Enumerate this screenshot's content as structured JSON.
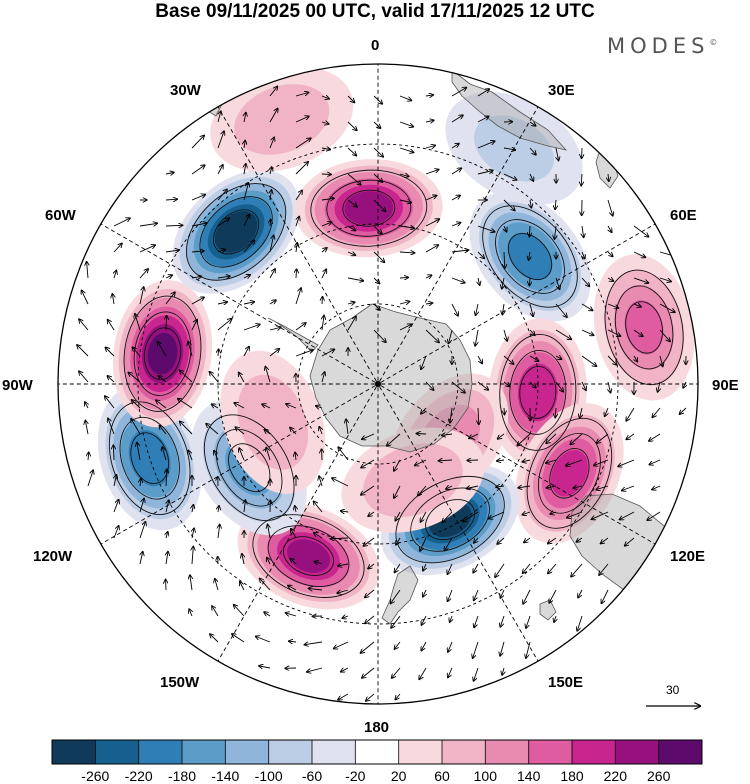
{
  "title": "Base 09/11/2025 00 UTC, valid 17/11/2025 12 UTC",
  "brand": "MODES",
  "brand_mark": "©",
  "longitude_labels": {
    "lon_0": "0",
    "lon_30e": "30E",
    "lon_60e": "60E",
    "lon_90e": "90E",
    "lon_120e": "120E",
    "lon_150e": "150E",
    "lon_180": "180",
    "lon_150w": "150W",
    "lon_120w": "120W",
    "lon_90w": "90W",
    "lon_60w": "60W",
    "lon_30w": "30W"
  },
  "wind_reference": {
    "label": "30"
  },
  "colorbar": {
    "levels": [
      "-260",
      "-220",
      "-180",
      "-140",
      "-100",
      "-60",
      "-20",
      "20",
      "60",
      "100",
      "140",
      "180",
      "220",
      "260"
    ],
    "colors": [
      "#0f3a5a",
      "#15608f",
      "#2f7fb6",
      "#5b9cc9",
      "#8fb6da",
      "#bccde6",
      "#e0e2f0",
      "#ffffff",
      "#f8dade",
      "#f1b4c6",
      "#e98bb0",
      "#df5ca0",
      "#c8258f",
      "#96107e",
      "#5c0a6b"
    ]
  },
  "anomalies": [
    {
      "lon": -43,
      "r": 0.65,
      "val": -280
    },
    {
      "lon": -3,
      "r": 0.55,
      "val": 230
    },
    {
      "lon": 50,
      "r": 0.62,
      "val": -190
    },
    {
      "lon": 78,
      "r": 0.85,
      "val": 140
    },
    {
      "lon": 93,
      "r": 0.5,
      "val": 200
    },
    {
      "lon": 115,
      "r": 0.66,
      "val": 180
    },
    {
      "lon": 152,
      "r": 0.48,
      "val": -270
    },
    {
      "lon": -158,
      "r": 0.58,
      "val": 220
    },
    {
      "lon": -123,
      "r": 0.48,
      "val": -150
    },
    {
      "lon": -108,
      "r": 0.75,
      "val": -200
    },
    {
      "lon": -82,
      "r": 0.68,
      "val": 260
    },
    {
      "lon": 128,
      "r": 0.28,
      "val": 120
    },
    {
      "lon": -110,
      "r": 0.35,
      "val": 80
    },
    {
      "lon": 160,
      "r": 0.32,
      "val": 90
    },
    {
      "lon": 30,
      "r": 0.85,
      "val": -60
    },
    {
      "lon": -20,
      "r": 0.88,
      "val": 80
    }
  ]
}
